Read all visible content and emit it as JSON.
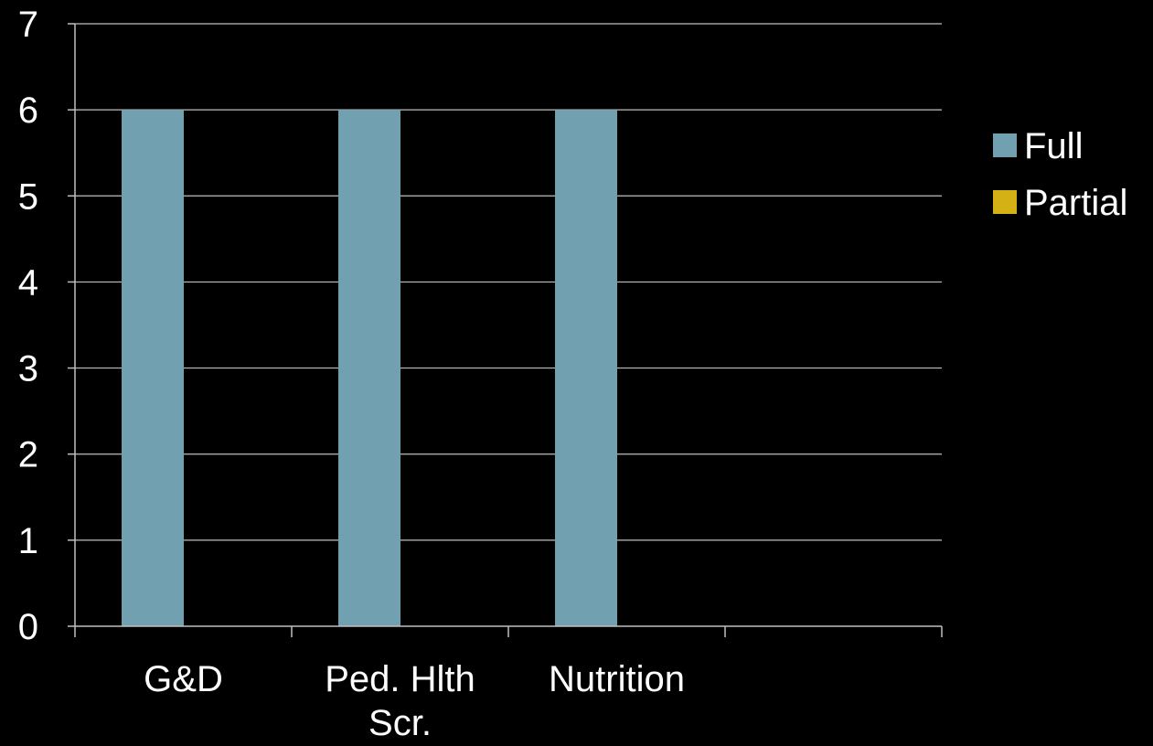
{
  "chart_data": {
    "type": "bar",
    "title": "",
    "xlabel": "",
    "ylabel": "",
    "categories": [
      [
        "G&D"
      ],
      [
        "Ped. Hlth",
        "Scr."
      ],
      [
        "Nutrition"
      ],
      [
        ""
      ]
    ],
    "series": [
      {
        "name": "Full",
        "color": "#71a1b0",
        "values": [
          6,
          6,
          6,
          0
        ]
      },
      {
        "name": "Partial",
        "color": "#d4b216",
        "values": [
          0,
          0,
          0,
          0
        ]
      }
    ],
    "ylim": [
      0,
      7
    ],
    "yticks": [
      "0",
      "1",
      "2",
      "3",
      "4",
      "5",
      "6",
      "7"
    ],
    "grid": true,
    "legend_position": "right",
    "colors": {
      "background": "#000000",
      "text": "#ffffff",
      "grid": "#bfbfbf"
    }
  }
}
